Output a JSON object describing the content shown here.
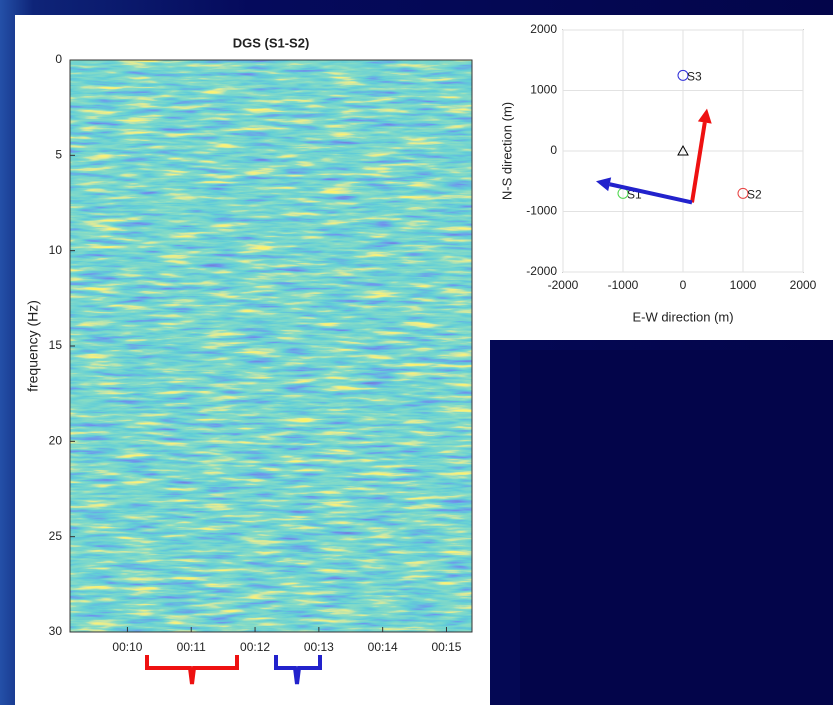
{
  "chart_data": [
    {
      "type": "spectrogram",
      "title": "DGS (S1-S2)",
      "ylabel": "frequency (Hz)",
      "xlim": [
        9.1,
        15.4
      ],
      "xticks": [
        {
          "value": 10,
          "label": "00:10"
        },
        {
          "value": 11,
          "label": "00:11"
        },
        {
          "value": 12,
          "label": "00:12"
        },
        {
          "value": 13,
          "label": "00:13"
        },
        {
          "value": 14,
          "label": "00:14"
        },
        {
          "value": 15,
          "label": "00:15"
        }
      ],
      "ylim": [
        0,
        30
      ],
      "yticks": [
        0,
        5,
        10,
        15,
        20,
        25,
        30
      ],
      "y_reversed": true
    },
    {
      "type": "scatter",
      "xlabel": "E-W direction (m)",
      "ylabel": "N-S direction (m)",
      "xlim": [
        -2000,
        2000
      ],
      "xticks": [
        -2000,
        -1000,
        0,
        1000,
        2000
      ],
      "ylim": [
        -2000,
        2000
      ],
      "yticks": [
        -2000,
        -1000,
        0,
        1000,
        2000
      ],
      "grid": true,
      "series": [
        {
          "name": "S1",
          "color": "#4cd64c",
          "marker": "circle",
          "x": [
            -1000
          ],
          "y": [
            -700
          ]
        },
        {
          "name": "S2",
          "color": "#e84040",
          "marker": "circle",
          "x": [
            1000
          ],
          "y": [
            -700
          ]
        },
        {
          "name": "S3",
          "color": "#3030d8",
          "marker": "circle",
          "x": [
            0
          ],
          "y": [
            1250
          ]
        },
        {
          "color": "#000000",
          "marker": "triangle",
          "x": [
            0
          ],
          "y": [
            0
          ]
        }
      ],
      "arrows": [
        {
          "color": "#ee1111",
          "x": [
            150,
            400
          ],
          "y": [
            -850,
            700
          ]
        },
        {
          "color": "#2222cc",
          "x": [
            150,
            -1450
          ],
          "y": [
            -850,
            -500
          ]
        }
      ]
    }
  ]
}
